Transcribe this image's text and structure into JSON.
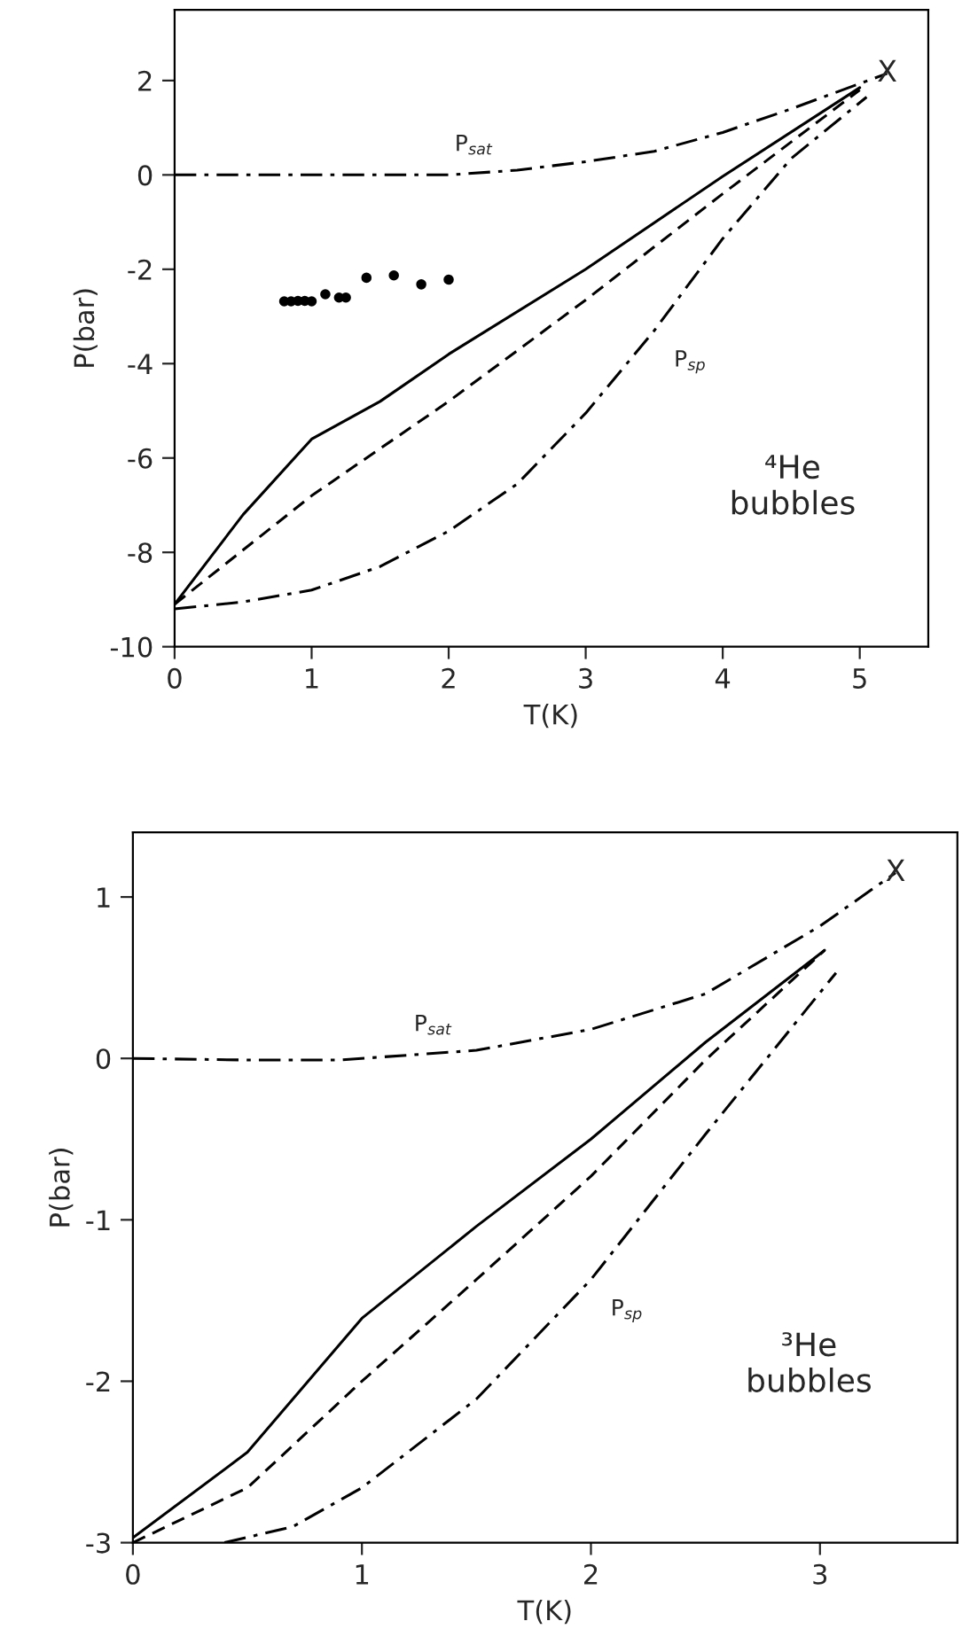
{
  "chart_data": [
    {
      "type": "line",
      "xlabel": "T(K)",
      "ylabel": "P(bar)",
      "xlim": [
        0,
        5.5
      ],
      "ylim": [
        -10,
        3.5
      ],
      "xticks": [
        0,
        1,
        2,
        3,
        4,
        5
      ],
      "yticks": [
        -10,
        -8,
        -6,
        -4,
        -2,
        0,
        2
      ],
      "grid": false,
      "legend": false,
      "series": [
        {
          "color": "#000000",
          "line_style": "dashdot",
          "x": [
            0,
            1,
            2,
            2.5,
            3,
            3.5,
            4,
            4.5,
            5.2
          ],
          "values": [
            0,
            0,
            0,
            0.1,
            0.28,
            0.5,
            0.9,
            1.4,
            2.15
          ]
        },
        {
          "color": "#000000",
          "line_style": "solid",
          "x": [
            0,
            0.5,
            1,
            1.5,
            2,
            3,
            4,
            5
          ],
          "values": [
            -9.1,
            -7.2,
            -5.6,
            -4.8,
            -3.8,
            -2.0,
            -0.03,
            1.85
          ]
        },
        {
          "color": "#000000",
          "line_style": "dashed",
          "x": [
            0,
            1,
            2,
            3,
            4,
            5
          ],
          "values": [
            -9.1,
            -6.8,
            -4.8,
            -2.65,
            -0.4,
            1.8
          ]
        },
        {
          "color": "#000000",
          "line_style": "dashdot",
          "x": [
            0,
            0.5,
            1,
            1.5,
            2,
            2.5,
            3,
            3.5,
            4,
            4.5,
            5.05
          ],
          "values": [
            -9.2,
            -9.05,
            -8.8,
            -8.3,
            -7.55,
            -6.55,
            -5.05,
            -3.3,
            -1.35,
            0.35,
            1.65
          ]
        },
        {
          "type": "scatter",
          "color": "#000000",
          "marker": "circle",
          "x": [
            0.8,
            0.85,
            0.9,
            0.95,
            1.0,
            1.1,
            1.2,
            1.25,
            1.4,
            1.6,
            1.8,
            2.0
          ],
          "values": [
            -2.68,
            -2.68,
            -2.67,
            -2.67,
            -2.68,
            -2.53,
            -2.6,
            -2.6,
            -2.18,
            -2.13,
            -2.32,
            -2.22
          ]
        }
      ],
      "annotations": [
        {
          "text": "P$_{sat}$",
          "x": 2.5,
          "y": 0.1
        },
        {
          "text": "P$_{sp}$",
          "x": 3.5,
          "y": -3.3
        },
        {
          "text": "X",
          "x": 5.2,
          "y": 2.15
        },
        "⁴He\nbubbles"
      ]
    },
    {
      "type": "line",
      "xlabel": "T(K)",
      "ylabel": "P(bar)",
      "xlim": [
        0,
        3.6
      ],
      "ylim": [
        -3,
        1.4
      ],
      "xticks": [
        0,
        1,
        2,
        3
      ],
      "yticks": [
        -3,
        -2,
        -1,
        0,
        1
      ],
      "grid": false,
      "legend": false,
      "series": [
        {
          "color": "#000000",
          "line_style": "dashdot",
          "x": [
            0,
            0.5,
            0.9,
            1.5,
            2,
            2.5,
            3,
            3.33
          ],
          "values": [
            0,
            -0.01,
            -0.01,
            0.05,
            0.18,
            0.4,
            0.82,
            1.15
          ]
        },
        {
          "color": "#000000",
          "line_style": "solid",
          "x": [
            0,
            0.5,
            1,
            1.5,
            2,
            2.5,
            3.02
          ],
          "values": [
            -2.97,
            -2.44,
            -1.61,
            -1.04,
            -0.5,
            0.1,
            0.67
          ]
        },
        {
          "color": "#000000",
          "line_style": "dashed",
          "x": [
            0,
            0.5,
            1,
            1.5,
            2,
            2.5,
            3.02
          ],
          "values": [
            -3,
            -2.66,
            -2.0,
            -1.37,
            -0.73,
            -0.01,
            0.67
          ]
        },
        {
          "color": "#000000",
          "line_style": "dashdot",
          "x": [
            0.4,
            0.7,
            1,
            1.5,
            2,
            2.5,
            3.07
          ],
          "values": [
            -3,
            -2.9,
            -2.66,
            -2.11,
            -1.37,
            -0.47,
            0.53
          ]
        }
      ],
      "annotations": [
        {
          "text": "P$_{sat}$",
          "x": 1.5,
          "y": 0.05
        },
        {
          "text": "P$_{sp}$",
          "x": 2,
          "y": -1.37
        },
        {
          "text": "X",
          "x": 3.33,
          "y": 1.15
        },
        "³He\nbubbles"
      ]
    }
  ]
}
